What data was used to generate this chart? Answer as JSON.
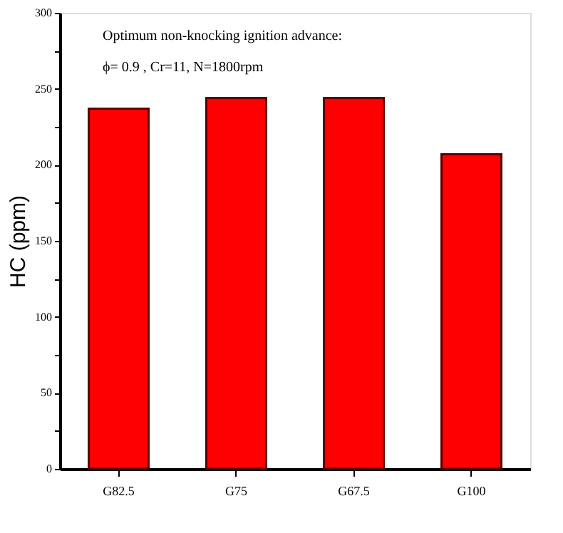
{
  "chart_data": {
    "type": "bar",
    "ylabel": "HC (ppm)",
    "categories": [
      "G82.5",
      "G75",
      "G67.5",
      "G100"
    ],
    "values": [
      237,
      244,
      244,
      207
    ],
    "color": "#ff0000",
    "ylim": [
      0,
      300
    ],
    "yticks": [
      0,
      {
        "value": 25,
        "label": null
      },
      50,
      {
        "value": 75,
        "label": null
      },
      100,
      {
        "value": 125,
        "label": null
      },
      150,
      {
        "value": 175,
        "label": null
      },
      200,
      {
        "value": 225,
        "label": null
      },
      250,
      {
        "value": 275,
        "label": null
      },
      300
    ],
    "annotations": [
      "Optimum non-knocking ignition advance:",
      "ϕ= 0.9 , Cr=11, N=1800rpm"
    ],
    "grid": false
  }
}
